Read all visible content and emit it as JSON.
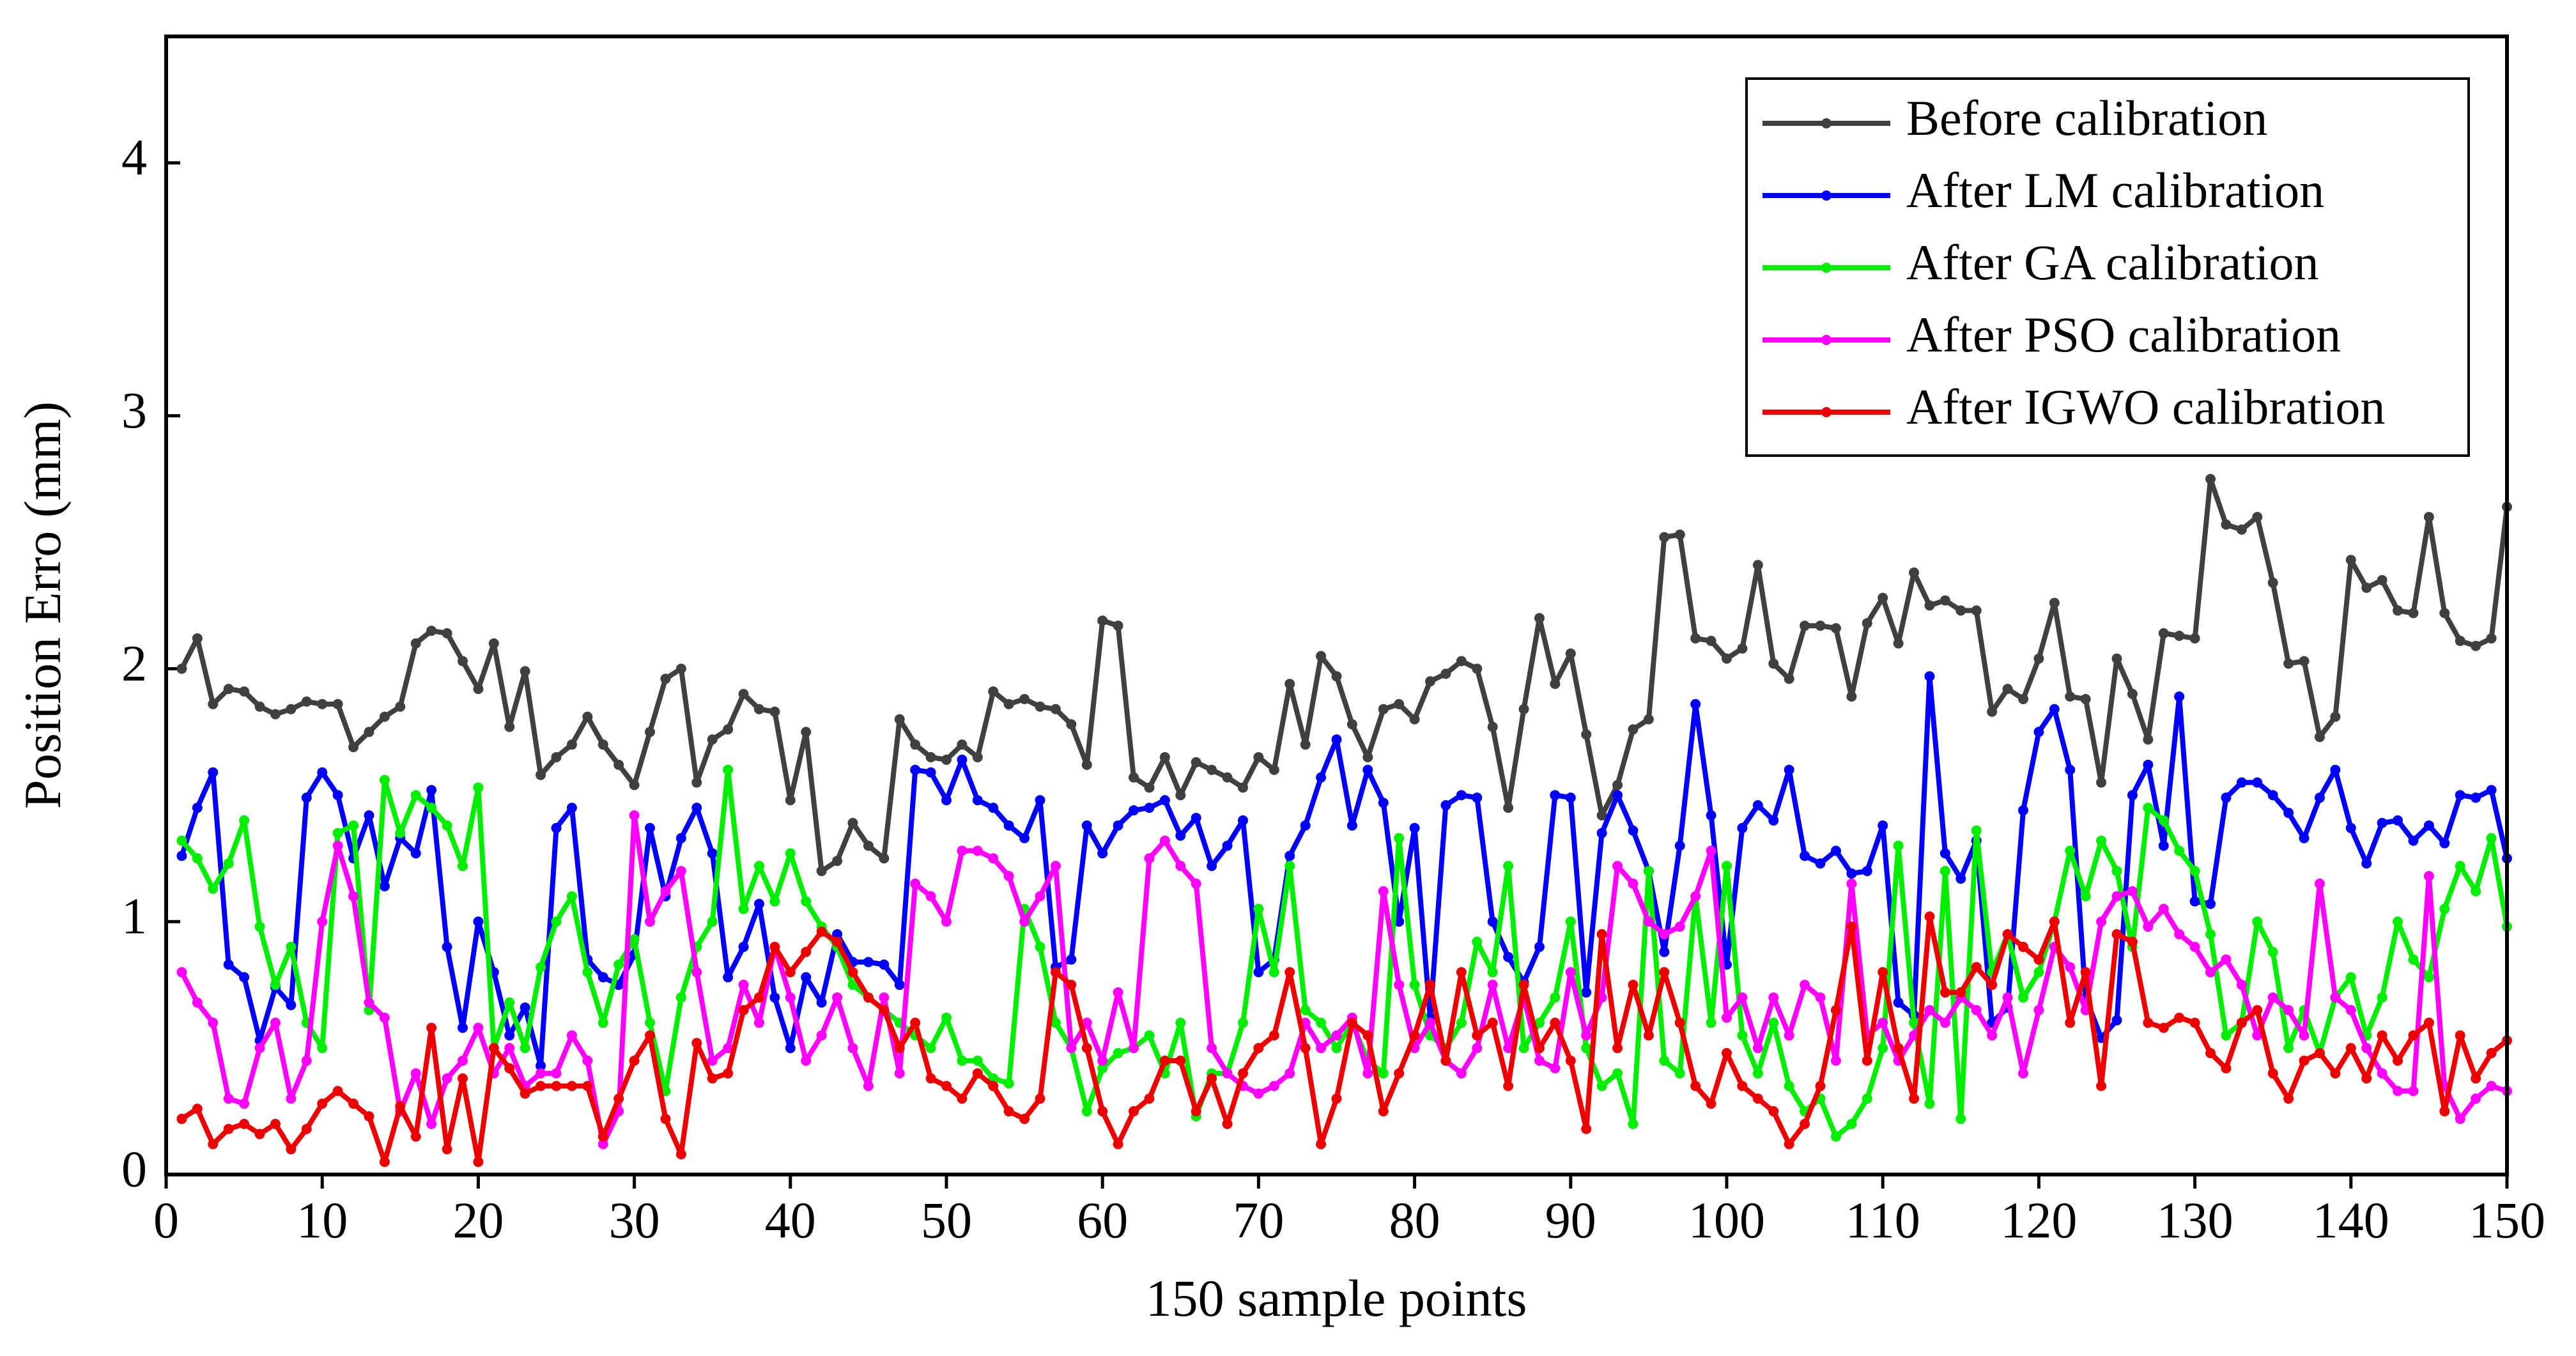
{
  "chart_data": {
    "type": "line",
    "xlabel": "150 sample points",
    "ylabel": "Position Erro (mm)",
    "xlim": [
      0,
      150
    ],
    "xticks": [
      0,
      10,
      20,
      30,
      40,
      50,
      60,
      70,
      80,
      90,
      100,
      110,
      120,
      130,
      140,
      150
    ],
    "ylim": [
      0,
      4.5
    ],
    "yticks": [
      0,
      1,
      2,
      3,
      4
    ],
    "grid": false,
    "legend": "upper right",
    "x": [
      1,
      2,
      3,
      4,
      5,
      6,
      7,
      8,
      9,
      10,
      11,
      12,
      13,
      14,
      15,
      16,
      17,
      18,
      19,
      20,
      21,
      22,
      23,
      24,
      25,
      26,
      27,
      28,
      29,
      30,
      31,
      32,
      33,
      34,
      35,
      36,
      37,
      38,
      39,
      40,
      41,
      42,
      43,
      44,
      45,
      46,
      47,
      48,
      49,
      50,
      51,
      52,
      53,
      54,
      55,
      56,
      57,
      58,
      59,
      60,
      61,
      62,
      63,
      64,
      65,
      66,
      67,
      68,
      69,
      70,
      71,
      72,
      73,
      74,
      75,
      76,
      77,
      78,
      79,
      80,
      81,
      82,
      83,
      84,
      85,
      86,
      87,
      88,
      89,
      90,
      91,
      92,
      93,
      94,
      95,
      96,
      97,
      98,
      99,
      100,
      101,
      102,
      103,
      104,
      105,
      106,
      107,
      108,
      109,
      110,
      111,
      112,
      113,
      114,
      115,
      116,
      117,
      118,
      119,
      120,
      121,
      122,
      123,
      124,
      125,
      126,
      127,
      128,
      129,
      130,
      131,
      132,
      133,
      134,
      135,
      136,
      137,
      138,
      139,
      140,
      141,
      142,
      143,
      144,
      145,
      146,
      147,
      148,
      149,
      150
    ],
    "series": [
      {
        "name": "Before calibration",
        "color": "#404040",
        "values": [
          2.0,
          2.12,
          1.86,
          1.92,
          1.91,
          1.85,
          1.82,
          1.84,
          1.87,
          1.86,
          1.86,
          1.69,
          1.75,
          1.81,
          1.85,
          2.1,
          2.15,
          2.14,
          2.03,
          1.92,
          2.1,
          1.77,
          1.99,
          1.58,
          1.65,
          1.7,
          1.81,
          1.7,
          1.62,
          1.54,
          1.75,
          1.96,
          2.0,
          1.55,
          1.72,
          1.76,
          1.9,
          1.84,
          1.83,
          1.48,
          1.75,
          1.2,
          1.24,
          1.39,
          1.3,
          1.25,
          1.8,
          1.7,
          1.65,
          1.64,
          1.7,
          1.65,
          1.91,
          1.86,
          1.88,
          1.85,
          1.84,
          1.78,
          1.62,
          2.19,
          2.17,
          1.57,
          1.53,
          1.65,
          1.5,
          1.63,
          1.6,
          1.57,
          1.53,
          1.65,
          1.6,
          1.94,
          1.7,
          2.05,
          1.97,
          1.78,
          1.65,
          1.84,
          1.86,
          1.8,
          1.95,
          1.98,
          2.03,
          2.0,
          1.77,
          1.45,
          1.84,
          2.2,
          1.94,
          2.06,
          1.74,
          1.42,
          1.54,
          1.76,
          1.8,
          2.52,
          2.53,
          2.12,
          2.11,
          2.04,
          2.08,
          2.41,
          2.02,
          1.96,
          2.17,
          2.17,
          2.16,
          1.89,
          2.18,
          2.28,
          2.1,
          2.38,
          2.25,
          2.27,
          2.23,
          2.23,
          1.83,
          1.92,
          1.88,
          2.04,
          2.26,
          1.89,
          1.88,
          1.55,
          2.04,
          1.9,
          1.72,
          2.14,
          2.13,
          2.12,
          2.75,
          2.57,
          2.55,
          2.6,
          2.34,
          2.02,
          2.03,
          1.73,
          1.81,
          2.43,
          2.32,
          2.35,
          2.23,
          2.22,
          2.6,
          2.22,
          2.11,
          2.09,
          2.12,
          2.64
        ]
      },
      {
        "name": "After LM calibration",
        "color": "#0000ff",
        "values": [
          1.26,
          1.45,
          1.59,
          0.83,
          0.78,
          0.53,
          0.74,
          0.67,
          1.49,
          1.59,
          1.5,
          1.25,
          1.42,
          1.14,
          1.33,
          1.27,
          1.52,
          0.9,
          0.58,
          1.0,
          0.8,
          0.55,
          0.66,
          0.43,
          1.37,
          1.45,
          0.85,
          0.78,
          0.75,
          0.87,
          1.37,
          1.1,
          1.33,
          1.45,
          1.27,
          0.78,
          0.9,
          1.07,
          0.7,
          0.5,
          0.78,
          0.68,
          0.95,
          0.84,
          0.84,
          0.83,
          0.75,
          1.6,
          1.59,
          1.48,
          1.64,
          1.48,
          1.45,
          1.38,
          1.33,
          1.48,
          0.82,
          0.85,
          1.38,
          1.27,
          1.38,
          1.44,
          1.45,
          1.48,
          1.34,
          1.41,
          1.22,
          1.3,
          1.4,
          0.8,
          0.85,
          1.26,
          1.38,
          1.57,
          1.72,
          1.38,
          1.6,
          1.47,
          1.0,
          1.37,
          0.62,
          1.46,
          1.5,
          1.49,
          1.0,
          0.86,
          0.76,
          0.9,
          1.5,
          1.49,
          0.72,
          1.35,
          1.5,
          1.36,
          1.2,
          0.88,
          1.3,
          1.86,
          1.42,
          0.83,
          1.37,
          1.46,
          1.4,
          1.6,
          1.26,
          1.23,
          1.28,
          1.19,
          1.2,
          1.38,
          0.68,
          0.63,
          1.97,
          1.27,
          1.17,
          1.32,
          0.6,
          0.66,
          1.44,
          1.75,
          1.84,
          1.6,
          0.7,
          0.54,
          0.61,
          1.5,
          1.62,
          1.3,
          1.89,
          1.08,
          1.07,
          1.49,
          1.55,
          1.55,
          1.5,
          1.43,
          1.33,
          1.49,
          1.6,
          1.37,
          1.23,
          1.39,
          1.4,
          1.32,
          1.38,
          1.31,
          1.5,
          1.49,
          1.52,
          1.25
        ]
      },
      {
        "name": "After GA calibration",
        "color": "#00ee00",
        "values": [
          1.32,
          1.25,
          1.13,
          1.23,
          1.4,
          0.98,
          0.75,
          0.9,
          0.6,
          0.5,
          1.35,
          1.38,
          0.65,
          1.56,
          1.35,
          1.5,
          1.45,
          1.38,
          1.22,
          1.53,
          0.5,
          0.68,
          0.5,
          0.82,
          1.0,
          1.1,
          0.8,
          0.6,
          0.83,
          0.93,
          0.6,
          0.33,
          0.7,
          0.9,
          1.0,
          1.6,
          1.05,
          1.22,
          1.08,
          1.27,
          1.08,
          0.98,
          0.9,
          0.75,
          0.7,
          0.65,
          0.6,
          0.55,
          0.5,
          0.62,
          0.45,
          0.45,
          0.38,
          0.36,
          1.05,
          0.9,
          0.6,
          0.5,
          0.25,
          0.42,
          0.48,
          0.5,
          0.55,
          0.4,
          0.6,
          0.23,
          0.4,
          0.4,
          0.6,
          1.05,
          0.8,
          1.22,
          0.65,
          0.6,
          0.5,
          0.6,
          0.45,
          0.4,
          1.33,
          0.75,
          0.55,
          0.5,
          0.6,
          0.92,
          0.8,
          1.22,
          0.5,
          0.6,
          0.7,
          1.0,
          0.5,
          0.35,
          0.4,
          0.2,
          1.2,
          0.45,
          0.4,
          1.1,
          0.6,
          1.22,
          0.55,
          0.4,
          0.6,
          0.35,
          0.25,
          0.3,
          0.15,
          0.2,
          0.3,
          0.5,
          1.3,
          0.6,
          0.28,
          1.2,
          0.22,
          1.36,
          0.8,
          0.95,
          0.7,
          0.8,
          1.0,
          1.28,
          1.1,
          1.32,
          1.2,
          0.9,
          1.45,
          1.4,
          1.28,
          1.2,
          0.95,
          0.55,
          0.6,
          1.0,
          0.88,
          0.5,
          0.65,
          0.48,
          0.7,
          0.78,
          0.55,
          0.7,
          1.0,
          0.85,
          0.78,
          1.05,
          1.22,
          1.12,
          1.33,
          0.98
        ]
      },
      {
        "name": "After PSO calibration",
        "color": "#ff00ff",
        "values": [
          0.8,
          0.68,
          0.6,
          0.3,
          0.28,
          0.5,
          0.6,
          0.3,
          0.45,
          1.0,
          1.3,
          1.1,
          0.68,
          0.62,
          0.25,
          0.4,
          0.2,
          0.38,
          0.45,
          0.58,
          0.4,
          0.5,
          0.35,
          0.4,
          0.4,
          0.55,
          0.45,
          0.12,
          0.25,
          1.42,
          1.0,
          1.12,
          1.2,
          0.8,
          0.45,
          0.5,
          0.75,
          0.6,
          0.9,
          0.7,
          0.45,
          0.55,
          0.7,
          0.5,
          0.35,
          0.7,
          0.4,
          1.15,
          1.1,
          1.0,
          1.28,
          1.28,
          1.25,
          1.18,
          1.0,
          1.1,
          1.22,
          0.5,
          0.6,
          0.45,
          0.72,
          0.5,
          1.25,
          1.32,
          1.22,
          1.15,
          0.5,
          0.4,
          0.35,
          0.32,
          0.35,
          0.4,
          0.6,
          0.5,
          0.55,
          0.62,
          0.4,
          1.12,
          0.75,
          0.5,
          0.6,
          0.45,
          0.4,
          0.5,
          0.75,
          0.5,
          0.7,
          0.45,
          0.42,
          0.8,
          0.55,
          0.7,
          1.22,
          1.15,
          1.0,
          0.95,
          0.98,
          1.1,
          1.28,
          0.62,
          0.7,
          0.5,
          0.7,
          0.55,
          0.75,
          0.7,
          0.45,
          1.15,
          0.55,
          0.6,
          0.45,
          0.55,
          0.65,
          0.6,
          0.7,
          0.65,
          0.55,
          0.7,
          0.4,
          0.65,
          0.9,
          0.82,
          0.65,
          1.0,
          1.1,
          1.12,
          0.98,
          1.05,
          0.95,
          0.9,
          0.8,
          0.85,
          0.75,
          0.55,
          0.7,
          0.65,
          0.55,
          1.15,
          0.7,
          0.65,
          0.5,
          0.4,
          0.33,
          0.33,
          1.18,
          0.35,
          0.22,
          0.3,
          0.35,
          0.33
        ]
      },
      {
        "name": "After IGWO calibration",
        "color": "#ee0000",
        "values": [
          0.22,
          0.26,
          0.12,
          0.18,
          0.2,
          0.16,
          0.2,
          0.1,
          0.18,
          0.28,
          0.33,
          0.28,
          0.23,
          0.05,
          0.27,
          0.15,
          0.58,
          0.1,
          0.38,
          0.05,
          0.5,
          0.42,
          0.32,
          0.35,
          0.35,
          0.35,
          0.35,
          0.15,
          0.3,
          0.45,
          0.55,
          0.22,
          0.08,
          0.52,
          0.38,
          0.4,
          0.65,
          0.7,
          0.9,
          0.8,
          0.88,
          0.96,
          0.92,
          0.8,
          0.7,
          0.65,
          0.5,
          0.6,
          0.38,
          0.35,
          0.3,
          0.4,
          0.35,
          0.25,
          0.22,
          0.3,
          0.8,
          0.75,
          0.5,
          0.25,
          0.12,
          0.25,
          0.3,
          0.45,
          0.45,
          0.25,
          0.38,
          0.2,
          0.4,
          0.5,
          0.55,
          0.8,
          0.5,
          0.12,
          0.3,
          0.6,
          0.55,
          0.25,
          0.4,
          0.55,
          0.75,
          0.45,
          0.8,
          0.55,
          0.6,
          0.35,
          0.75,
          0.5,
          0.6,
          0.45,
          0.18,
          0.95,
          0.5,
          0.75,
          0.55,
          0.8,
          0.6,
          0.35,
          0.28,
          0.48,
          0.35,
          0.3,
          0.25,
          0.12,
          0.2,
          0.35,
          0.65,
          0.98,
          0.45,
          0.8,
          0.5,
          0.3,
          1.02,
          0.72,
          0.72,
          0.82,
          0.75,
          0.95,
          0.9,
          0.85,
          1.0,
          0.6,
          0.8,
          0.35,
          0.95,
          0.92,
          0.6,
          0.58,
          0.62,
          0.6,
          0.48,
          0.42,
          0.6,
          0.65,
          0.4,
          0.3,
          0.45,
          0.48,
          0.4,
          0.5,
          0.38,
          0.55,
          0.45,
          0.55,
          0.6,
          0.25,
          0.55,
          0.38,
          0.48,
          0.53
        ]
      }
    ]
  }
}
